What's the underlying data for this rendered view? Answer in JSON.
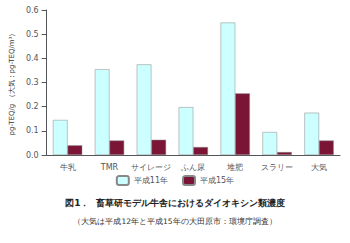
{
  "chart_data": {
    "type": "bar",
    "title": "図1．  畜草研モデル牛舎におけるダイオキシン類濃度",
    "subtitle": "（大気は平成12年と平成15年の大田原市：環境庁調査）",
    "categories": [
      "牛乳",
      "TMR",
      "サイレージ",
      "ふん尿",
      "堆肥",
      "スラリー",
      "大気"
    ],
    "series": [
      {
        "name": "平成11年",
        "color": "#ccffff",
        "values": [
          0.145,
          0.355,
          0.375,
          0.198,
          0.548,
          0.095,
          0.175
        ]
      },
      {
        "name": "平成15年",
        "color": "#7b1535",
        "values": [
          0.04,
          0.06,
          0.063,
          0.033,
          0.255,
          0.012,
          0.06
        ]
      }
    ],
    "ylabel": "pg-TEQ/g （大気：pg-TEQ/m³）",
    "ylim": [
      0,
      0.6
    ],
    "yticks": [
      {
        "value": 0,
        "label": "0.0"
      },
      {
        "value": 0.1,
        "label": "0.1"
      },
      {
        "value": 0.2,
        "label": "0.2"
      },
      {
        "value": 0.3,
        "label": "0.3"
      },
      {
        "value": 0.4,
        "label": "0.4"
      },
      {
        "value": 0.5,
        "label": "0.5"
      },
      {
        "value": 0.6,
        "label": "0.6"
      }
    ],
    "legend": "bottom",
    "grid": false
  }
}
